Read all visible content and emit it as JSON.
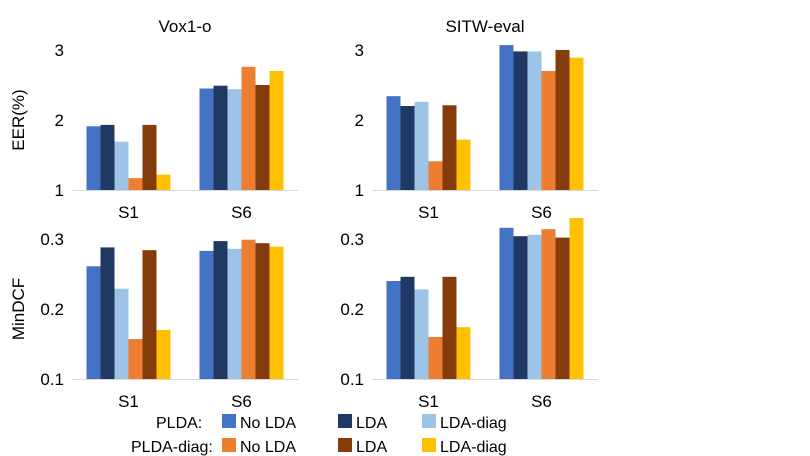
{
  "colors": {
    "PLDA|No LDA": "#4472C4",
    "PLDA|LDA": "#203864",
    "PLDA|LDA-diag": "#9DC3E6",
    "PLDA-diag|No LDA": "#ED7D31",
    "PLDA-diag|LDA": "#843C0C",
    "PLDA-diag|LDA-diag": "#FFC000",
    "axis": "#d9d9d9"
  },
  "legend": {
    "groups": [
      "PLDA:",
      "PLDA-diag:"
    ],
    "items": [
      "No LDA",
      "LDA",
      "LDA-diag"
    ]
  },
  "chart_data": [
    {
      "type": "bar",
      "title": "Vox1-o",
      "ylabel": "EER(%)",
      "categories": [
        "S1",
        "S6"
      ],
      "ylim": [
        1,
        3
      ],
      "yticks": [
        "1",
        "2",
        "3"
      ],
      "series": [
        {
          "name": "PLDA|No LDA",
          "values": [
            1.91,
            2.45
          ]
        },
        {
          "name": "PLDA|LDA",
          "values": [
            1.93,
            2.49
          ]
        },
        {
          "name": "PLDA|LDA-diag",
          "values": [
            1.69,
            2.44
          ]
        },
        {
          "name": "PLDA-diag|No LDA",
          "values": [
            1.17,
            2.76
          ]
        },
        {
          "name": "PLDA-diag|LDA",
          "values": [
            1.93,
            2.5
          ]
        },
        {
          "name": "PLDA-diag|LDA-diag",
          "values": [
            1.22,
            2.7
          ]
        }
      ]
    },
    {
      "type": "bar",
      "title": "SITW-eval",
      "ylabel": "",
      "categories": [
        "S1",
        "S6"
      ],
      "ylim": [
        1,
        3
      ],
      "yticks": [
        "1",
        "2",
        "3"
      ],
      "series": [
        {
          "name": "PLDA|No LDA",
          "values": [
            2.34,
            3.07
          ]
        },
        {
          "name": "PLDA|LDA",
          "values": [
            2.2,
            2.98
          ]
        },
        {
          "name": "PLDA|LDA-diag",
          "values": [
            2.26,
            2.98
          ]
        },
        {
          "name": "PLDA-diag|No LDA",
          "values": [
            1.41,
            2.7
          ]
        },
        {
          "name": "PLDA-diag|LDA",
          "values": [
            2.21,
            3.0
          ]
        },
        {
          "name": "PLDA-diag|LDA-diag",
          "values": [
            1.72,
            2.89
          ]
        }
      ]
    },
    {
      "type": "bar",
      "title": "",
      "ylabel": "MinDCF",
      "categories": [
        "S1",
        "S6"
      ],
      "ylim": [
        0.1,
        0.3
      ],
      "yticks": [
        "0.1",
        "0.2",
        "0.3"
      ],
      "series": [
        {
          "name": "PLDA|No LDA",
          "values": [
            0.261,
            0.283
          ]
        },
        {
          "name": "PLDA|LDA",
          "values": [
            0.288,
            0.297
          ]
        },
        {
          "name": "PLDA|LDA-diag",
          "values": [
            0.229,
            0.286
          ]
        },
        {
          "name": "PLDA-diag|No LDA",
          "values": [
            0.157,
            0.299
          ]
        },
        {
          "name": "PLDA-diag|LDA",
          "values": [
            0.284,
            0.294
          ]
        },
        {
          "name": "PLDA-diag|LDA-diag",
          "values": [
            0.17,
            0.289
          ]
        }
      ]
    },
    {
      "type": "bar",
      "title": "",
      "ylabel": "",
      "categories": [
        "S1",
        "S6"
      ],
      "ylim": [
        0.1,
        0.3
      ],
      "yticks": [
        "0.1",
        "0.2",
        "0.3"
      ],
      "series": [
        {
          "name": "PLDA|No LDA",
          "values": [
            0.24,
            0.316
          ]
        },
        {
          "name": "PLDA|LDA",
          "values": [
            0.246,
            0.304
          ]
        },
        {
          "name": "PLDA|LDA-diag",
          "values": [
            0.228,
            0.306
          ]
        },
        {
          "name": "PLDA-diag|No LDA",
          "values": [
            0.16,
            0.314
          ]
        },
        {
          "name": "PLDA-diag|LDA",
          "values": [
            0.246,
            0.302
          ]
        },
        {
          "name": "PLDA-diag|LDA-diag",
          "values": [
            0.174,
            0.33
          ]
        }
      ]
    }
  ]
}
